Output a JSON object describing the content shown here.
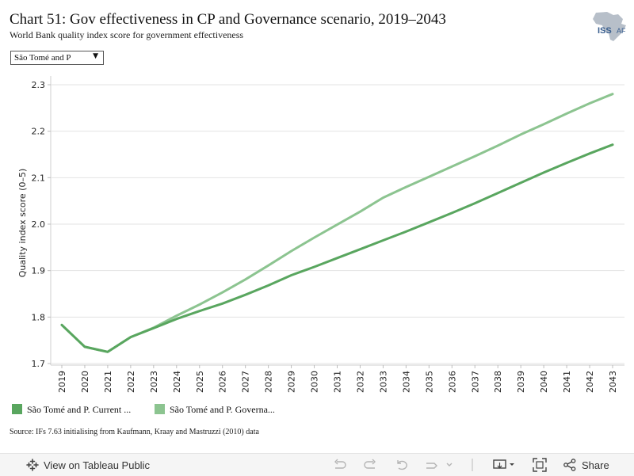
{
  "header": {
    "title": "Chart 51: Gov effectiveness in CP and Governance scenario, 2019–2043",
    "subtitle": "World Bank quality index score for government effectiveness",
    "logo_text": "ISS",
    "logo_text2": "AF"
  },
  "filter": {
    "selected": "São Tomé and P"
  },
  "legend": {
    "items": [
      {
        "label": "São Tomé and P. Current ...",
        "color": "#59a65f"
      },
      {
        "label": "São Tomé and P. Governa...",
        "color": "#8cc490"
      }
    ]
  },
  "source": "Source: IFs 7.63 initialising from Kaufmann, Kraay and Mastruzzi (2010) data",
  "toolbar": {
    "view_label": "View on Tableau Public",
    "share_label": "Share"
  },
  "chart_data": {
    "type": "line",
    "ylabel": "Quality index score (0–5)",
    "xlabel": "",
    "ylim": [
      1.7,
      2.3
    ],
    "yticks": [
      1.7,
      1.8,
      1.9,
      2.0,
      2.1,
      2.2,
      2.3
    ],
    "ytick_labels": [
      "1.7",
      "1.8",
      "1.9",
      "2.0",
      "2.1",
      "2.2",
      "2.3"
    ],
    "x": [
      "2019",
      "2020",
      "2021",
      "2022",
      "2023",
      "2024",
      "2025",
      "2026",
      "2027",
      "2028",
      "2029",
      "2030",
      "2031",
      "2032",
      "2033",
      "2034",
      "2035",
      "2036",
      "2037",
      "2038",
      "2039",
      "2040",
      "2041",
      "2042",
      "2043"
    ],
    "grid": true,
    "legend_position": "bottom-left",
    "series": [
      {
        "name": "São Tomé and P. Current ...",
        "color": "#59a65f",
        "values": [
          1.783,
          1.736,
          1.725,
          1.757,
          1.776,
          1.796,
          1.813,
          1.829,
          1.848,
          1.868,
          1.89,
          1.908,
          1.927,
          1.946,
          1.965,
          1.984,
          2.004,
          2.024,
          2.045,
          2.067,
          2.089,
          2.111,
          2.132,
          2.152,
          2.171
        ]
      },
      {
        "name": "São Tomé and P. Governa...",
        "color": "#8cc490",
        "values": [
          1.783,
          1.736,
          1.725,
          1.757,
          1.777,
          1.803,
          1.827,
          1.853,
          1.881,
          1.911,
          1.942,
          1.971,
          1.999,
          2.027,
          2.057,
          2.08,
          2.102,
          2.124,
          2.146,
          2.169,
          2.193,
          2.215,
          2.238,
          2.26,
          2.28
        ]
      }
    ]
  }
}
